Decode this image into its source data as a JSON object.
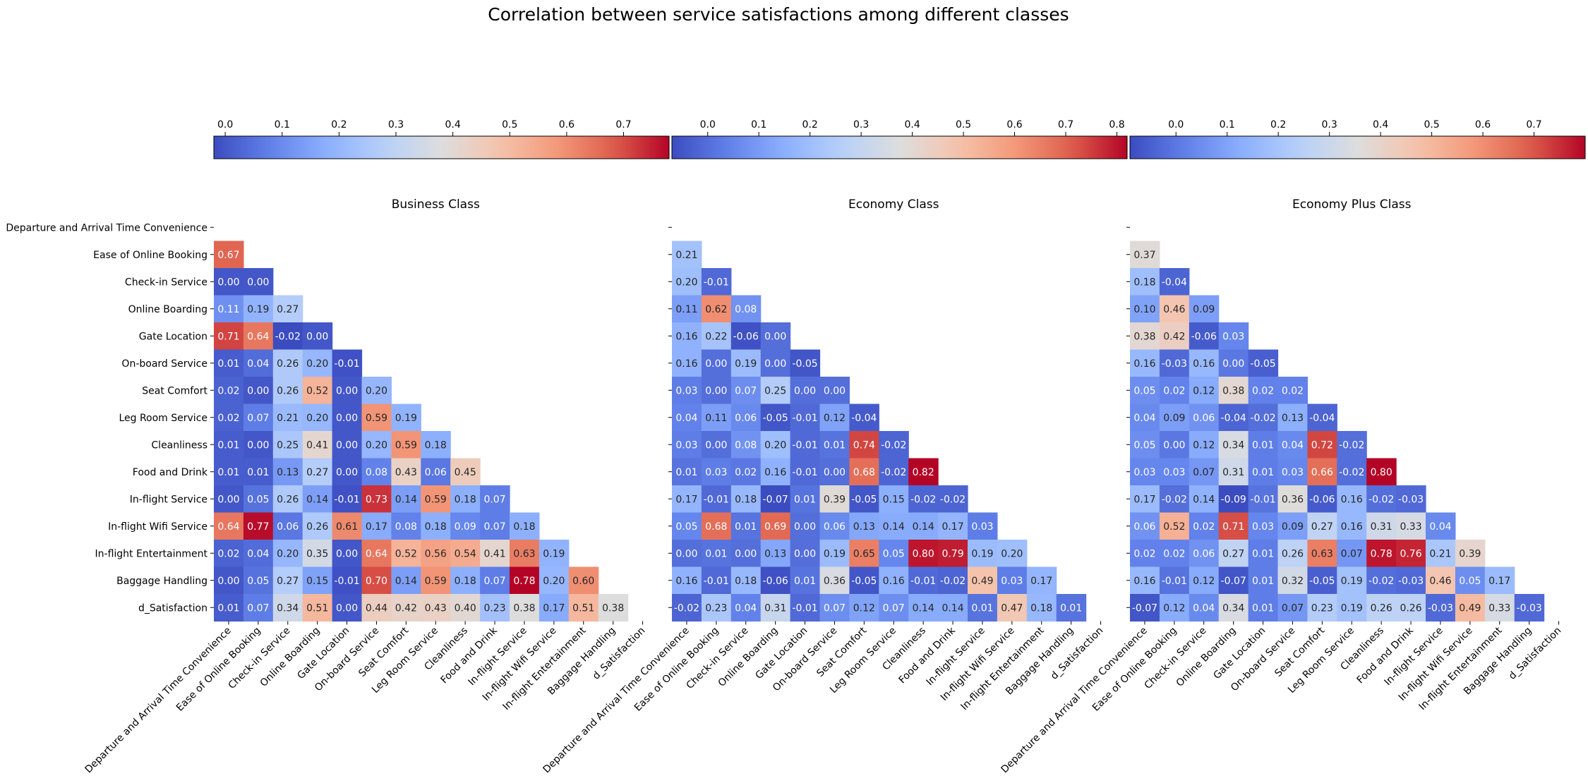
{
  "chart_data": [
    {
      "type": "heatmap",
      "suptitle": "Correlation between service satisfactions among different classes",
      "title": "Business Class",
      "labels": [
        "Departure and Arrival Time Convenience",
        "Ease of Online Booking",
        "Check-in Service",
        "Online Boarding",
        "Gate Location",
        "On-board Service",
        "Seat Comfort",
        "Leg Room Service",
        "Cleanliness",
        "Food and Drink",
        "In-flight Service",
        "In-flight Wifi Service",
        "In-flight Entertainment",
        "Baggage Handling",
        "d_Satisfaction"
      ],
      "mask": "upper-triangle",
      "colormap": "coolwarm",
      "colorbar": {
        "orientation": "horizontal",
        "location": "top",
        "range": [
          -0.02,
          0.78
        ],
        "ticks": [
          "0.0",
          "0.1",
          "0.2",
          "0.3",
          "0.4",
          "0.5",
          "0.6",
          "0.7"
        ]
      },
      "matrix": [
        [],
        [
          0.67
        ],
        [
          -0.0,
          -0.0
        ],
        [
          0.11,
          0.19,
          0.27
        ],
        [
          0.71,
          0.64,
          -0.02,
          -0.0
        ],
        [
          0.01,
          0.04,
          0.26,
          0.2,
          -0.01
        ],
        [
          0.02,
          -0.0,
          0.26,
          0.52,
          0.0,
          0.2
        ],
        [
          0.02,
          0.07,
          0.21,
          0.2,
          0.0,
          0.59,
          0.19
        ],
        [
          0.01,
          -0.0,
          0.25,
          0.41,
          -0.0,
          0.2,
          0.59,
          0.18
        ],
        [
          0.01,
          0.01,
          0.13,
          0.27,
          -0.0,
          0.08,
          0.43,
          0.06,
          0.45
        ],
        [
          -0.0,
          0.05,
          0.26,
          0.14,
          -0.01,
          0.73,
          0.14,
          0.59,
          0.18,
          0.07
        ],
        [
          0.64,
          0.77,
          0.06,
          0.26,
          0.61,
          0.17,
          0.08,
          0.18,
          0.09,
          0.07,
          0.18
        ],
        [
          0.02,
          0.04,
          0.2,
          0.35,
          0.0,
          0.64,
          0.52,
          0.56,
          0.54,
          0.41,
          0.63,
          0.19
        ],
        [
          0.0,
          0.05,
          0.27,
          0.15,
          -0.01,
          0.7,
          0.14,
          0.59,
          0.18,
          0.07,
          0.78,
          0.2,
          0.6
        ],
        [
          0.01,
          0.07,
          0.34,
          0.51,
          -0.0,
          0.44,
          0.42,
          0.43,
          0.4,
          0.23,
          0.38,
          0.17,
          0.51,
          0.38
        ]
      ]
    },
    {
      "type": "heatmap",
      "title": "Economy Class",
      "labels": [
        "Departure and Arrival Time Convenience",
        "Ease of Online Booking",
        "Check-in Service",
        "Online Boarding",
        "Gate Location",
        "On-board Service",
        "Seat Comfort",
        "Leg Room Service",
        "Cleanliness",
        "Food and Drink",
        "In-flight Service",
        "In-flight Wifi Service",
        "In-flight Entertainment",
        "Baggage Handling",
        "d_Satisfaction"
      ],
      "mask": "upper-triangle",
      "colormap": "coolwarm",
      "colorbar": {
        "orientation": "horizontal",
        "location": "top",
        "range": [
          -0.07,
          0.82
        ],
        "ticks": [
          "0.0",
          "0.1",
          "0.2",
          "0.3",
          "0.4",
          "0.5",
          "0.6",
          "0.7",
          "0.8"
        ]
      },
      "matrix": [
        [],
        [
          0.21
        ],
        [
          0.2,
          -0.01
        ],
        [
          0.11,
          0.62,
          0.08
        ],
        [
          0.16,
          0.22,
          -0.06,
          -0.0
        ],
        [
          0.16,
          -0.0,
          0.19,
          -0.0,
          -0.05
        ],
        [
          0.03,
          0.0,
          0.07,
          0.25,
          -0.0,
          -0.0
        ],
        [
          0.04,
          0.11,
          0.06,
          -0.05,
          -0.01,
          0.12,
          -0.04
        ],
        [
          0.03,
          0.0,
          0.08,
          0.2,
          -0.01,
          0.01,
          0.74,
          -0.02
        ],
        [
          0.01,
          0.03,
          0.02,
          0.16,
          -0.01,
          0.0,
          0.68,
          -0.02,
          0.82
        ],
        [
          0.17,
          -0.01,
          0.18,
          -0.07,
          0.01,
          0.39,
          -0.05,
          0.15,
          -0.02,
          -0.02
        ],
        [
          0.05,
          0.68,
          0.01,
          0.69,
          0.0,
          0.06,
          0.13,
          0.14,
          0.14,
          0.17,
          0.03
        ],
        [
          -0.0,
          0.01,
          0.0,
          0.13,
          -0.0,
          0.19,
          0.65,
          0.05,
          0.8,
          0.79,
          0.19,
          0.2
        ],
        [
          0.16,
          -0.01,
          0.18,
          -0.06,
          0.01,
          0.36,
          -0.05,
          0.16,
          -0.01,
          -0.02,
          0.49,
          0.03,
          0.17
        ],
        [
          -0.02,
          0.23,
          0.04,
          0.31,
          -0.01,
          0.07,
          0.12,
          0.07,
          0.14,
          0.14,
          0.01,
          0.47,
          0.18,
          0.01
        ]
      ]
    },
    {
      "type": "heatmap",
      "title": "Economy Plus Class",
      "labels": [
        "Departure and Arrival Time Convenience",
        "Ease of Online Booking",
        "Check-in Service",
        "Online Boarding",
        "Gate Location",
        "On-board Service",
        "Seat Comfort",
        "Leg Room Service",
        "Cleanliness",
        "Food and Drink",
        "In-flight Service",
        "In-flight Wifi Service",
        "In-flight Entertainment",
        "Baggage Handling",
        "d_Satisfaction"
      ],
      "mask": "upper-triangle",
      "colormap": "coolwarm",
      "colorbar": {
        "orientation": "horizontal",
        "location": "top",
        "range": [
          -0.09,
          0.8
        ],
        "ticks": [
          "0.0",
          "0.1",
          "0.2",
          "0.3",
          "0.4",
          "0.5",
          "0.6",
          "0.7"
        ]
      },
      "matrix": [
        [],
        [
          0.37
        ],
        [
          0.18,
          -0.04
        ],
        [
          0.1,
          0.46,
          0.09
        ],
        [
          0.38,
          0.42,
          -0.06,
          0.03
        ],
        [
          0.16,
          -0.03,
          0.16,
          0.0,
          -0.05
        ],
        [
          0.05,
          0.02,
          0.12,
          0.38,
          0.02,
          0.02
        ],
        [
          0.04,
          0.09,
          0.06,
          -0.04,
          -0.02,
          0.13,
          -0.04
        ],
        [
          0.05,
          0.0,
          0.12,
          0.34,
          0.01,
          0.04,
          0.72,
          -0.02
        ],
        [
          0.03,
          0.03,
          0.07,
          0.31,
          0.01,
          0.03,
          0.66,
          -0.02,
          0.8
        ],
        [
          0.17,
          -0.02,
          0.14,
          -0.09,
          -0.01,
          0.36,
          -0.06,
          0.16,
          -0.02,
          -0.03
        ],
        [
          0.06,
          0.52,
          0.02,
          0.71,
          0.03,
          0.09,
          0.27,
          0.16,
          0.31,
          0.33,
          0.04
        ],
        [
          0.02,
          0.02,
          0.06,
          0.27,
          0.01,
          0.26,
          0.63,
          0.07,
          0.78,
          0.76,
          0.21,
          0.39
        ],
        [
          0.16,
          -0.01,
          0.12,
          -0.07,
          0.01,
          0.32,
          -0.05,
          0.19,
          -0.02,
          -0.03,
          0.46,
          0.05,
          0.17
        ],
        [
          -0.07,
          0.12,
          0.04,
          0.34,
          0.01,
          0.07,
          0.23,
          0.19,
          0.26,
          0.26,
          -0.03,
          0.49,
          0.33,
          -0.03
        ]
      ]
    }
  ]
}
